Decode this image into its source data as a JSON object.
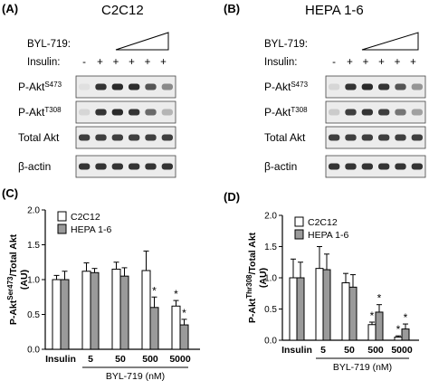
{
  "panels": {
    "A": {
      "letter": "(A)",
      "title": "C2C12",
      "drug_label": "BYL-719:",
      "insulin_label": "Insulin:",
      "insulin_marks": [
        "-",
        "+",
        "+",
        "+",
        "+",
        "+"
      ],
      "rows": [
        {
          "name": "P-Akt",
          "sup": "S473",
          "intensity": [
            0.05,
            0.85,
            0.9,
            0.88,
            0.7,
            0.45
          ]
        },
        {
          "name": "P-Akt",
          "sup": "T308",
          "intensity": [
            0.1,
            0.85,
            0.9,
            0.85,
            0.6,
            0.25
          ]
        },
        {
          "name": "Total Akt",
          "sup": "",
          "intensity": [
            0.8,
            0.8,
            0.8,
            0.8,
            0.8,
            0.8
          ]
        },
        {
          "name": "β-actin",
          "sup": "",
          "intensity": [
            0.85,
            0.85,
            0.85,
            0.85,
            0.85,
            0.85
          ]
        }
      ]
    },
    "B": {
      "letter": "(B)",
      "title": "HEPA 1-6",
      "drug_label": "BYL-719:",
      "insulin_label": "Insulin:",
      "insulin_marks": [
        "-",
        "+",
        "+",
        "+",
        "+",
        "+"
      ],
      "rows": [
        {
          "name": "P-Akt",
          "sup": "S473",
          "intensity": [
            0.1,
            0.85,
            0.9,
            0.85,
            0.7,
            0.4
          ]
        },
        {
          "name": "P-Akt",
          "sup": "T308",
          "intensity": [
            0.15,
            0.8,
            0.85,
            0.8,
            0.55,
            0.35
          ]
        },
        {
          "name": "Total Akt",
          "sup": "",
          "intensity": [
            0.8,
            0.8,
            0.8,
            0.8,
            0.8,
            0.8
          ]
        },
        {
          "name": "β-actin",
          "sup": "",
          "intensity": [
            0.85,
            0.85,
            0.85,
            0.85,
            0.85,
            0.85
          ]
        }
      ]
    },
    "C": {
      "letter": "(C)"
    },
    "D": {
      "letter": "(D)"
    }
  },
  "chart_data": [
    {
      "panel": "C",
      "type": "bar",
      "ylabel": "P-Akt",
      "ylabel_sup": "Ser473",
      "ylabel_tail": "/Total Akt",
      "ylabel_unit": "(AU)",
      "ylim": [
        0,
        2.0
      ],
      "yticks": [
        "0.0",
        "0.5",
        "1.0",
        "1.5",
        "2.0"
      ],
      "categories": [
        "Insulin",
        "5",
        "50",
        "500",
        "5000"
      ],
      "group_label": "BYL-719 (nM)",
      "series": [
        {
          "name": "C2C12",
          "color": "#ffffff",
          "values": [
            1.0,
            1.12,
            1.15,
            1.13,
            0.62
          ],
          "errors": [
            0.06,
            0.12,
            0.1,
            0.28,
            0.08
          ],
          "signif": [
            "",
            "",
            "",
            "",
            "*"
          ]
        },
        {
          "name": "HEPA 1-6",
          "color": "#9a9a9a",
          "values": [
            1.0,
            1.1,
            1.05,
            0.6,
            0.35
          ],
          "errors": [
            0.12,
            0.06,
            0.12,
            0.15,
            0.08
          ],
          "signif": [
            "",
            "",
            "",
            "*",
            "*"
          ]
        }
      ],
      "legend_position": "top-left"
    },
    {
      "panel": "D",
      "type": "bar",
      "ylabel": "P-Akt",
      "ylabel_sup": "Thr308",
      "ylabel_tail": "/Total Akt",
      "ylabel_unit": "(AU)",
      "ylim": [
        0,
        2.0
      ],
      "yticks": [
        "0.0",
        "0.5",
        "1.0",
        "1.5",
        "2.0"
      ],
      "categories": [
        "Insulin",
        "5",
        "50",
        "500",
        "5000"
      ],
      "group_label": "BYL-719 (nM)",
      "series": [
        {
          "name": "C2C12",
          "color": "#ffffff",
          "values": [
            1.0,
            1.15,
            0.92,
            0.25,
            0.05
          ],
          "errors": [
            0.3,
            0.35,
            0.15,
            0.04,
            0.02
          ],
          "signif": [
            "",
            "",
            "",
            "*",
            "*"
          ]
        },
        {
          "name": "HEPA 1-6",
          "color": "#9a9a9a",
          "values": [
            1.0,
            1.13,
            0.85,
            0.45,
            0.18
          ],
          "errors": [
            0.25,
            0.25,
            0.2,
            0.12,
            0.08
          ],
          "signif": [
            "",
            "",
            "",
            "*",
            "*"
          ]
        }
      ],
      "legend_position": "top-left"
    }
  ]
}
